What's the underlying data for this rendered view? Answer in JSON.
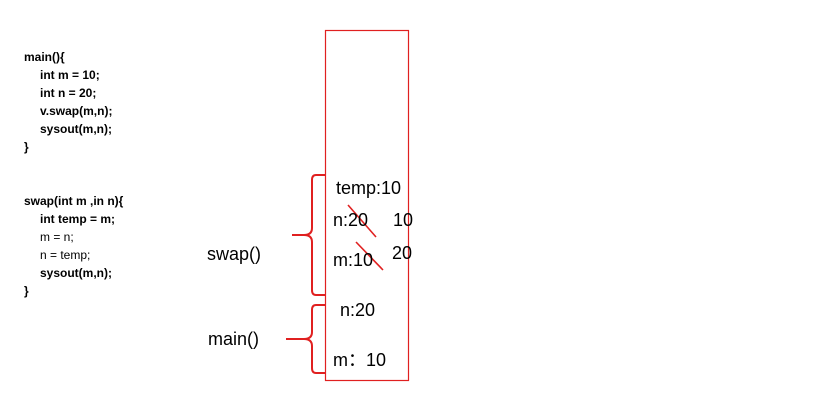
{
  "main_code": {
    "lines": [
      {
        "text": "main(){",
        "indent": false,
        "bold": true
      },
      {
        "text": "int m = 10;",
        "indent": true,
        "bold": true
      },
      {
        "text": "int n = 20;",
        "indent": true,
        "bold": true
      },
      {
        "text": "v.swap(m,n);",
        "indent": true,
        "bold": true
      },
      {
        "text": "sysout(m,n);",
        "indent": true,
        "bold": true
      },
      {
        "text": "}",
        "indent": false,
        "bold": true
      }
    ]
  },
  "swap_code": {
    "lines": [
      {
        "text": "swap(int m ,in n){",
        "indent": false,
        "bold": true
      },
      {
        "text": "int temp = m;",
        "indent": true,
        "bold": true
      },
      {
        "text": "m = n;",
        "indent": true,
        "bold": false
      },
      {
        "text": "n = temp;",
        "indent": true,
        "bold": false
      },
      {
        "text": "sysout(m,n);",
        "indent": true,
        "bold": true
      },
      {
        "text": "}",
        "indent": false,
        "bold": true
      }
    ]
  },
  "stack": {
    "border_color": "#e02020",
    "swap_frame": {
      "label": "swap()",
      "temp": "temp:10",
      "n_old": "n:20",
      "n_new": "10",
      "m_old": "m:10",
      "m_new": "20"
    },
    "main_frame": {
      "label": "main()",
      "n": "n:20",
      "m": "m：10"
    }
  }
}
